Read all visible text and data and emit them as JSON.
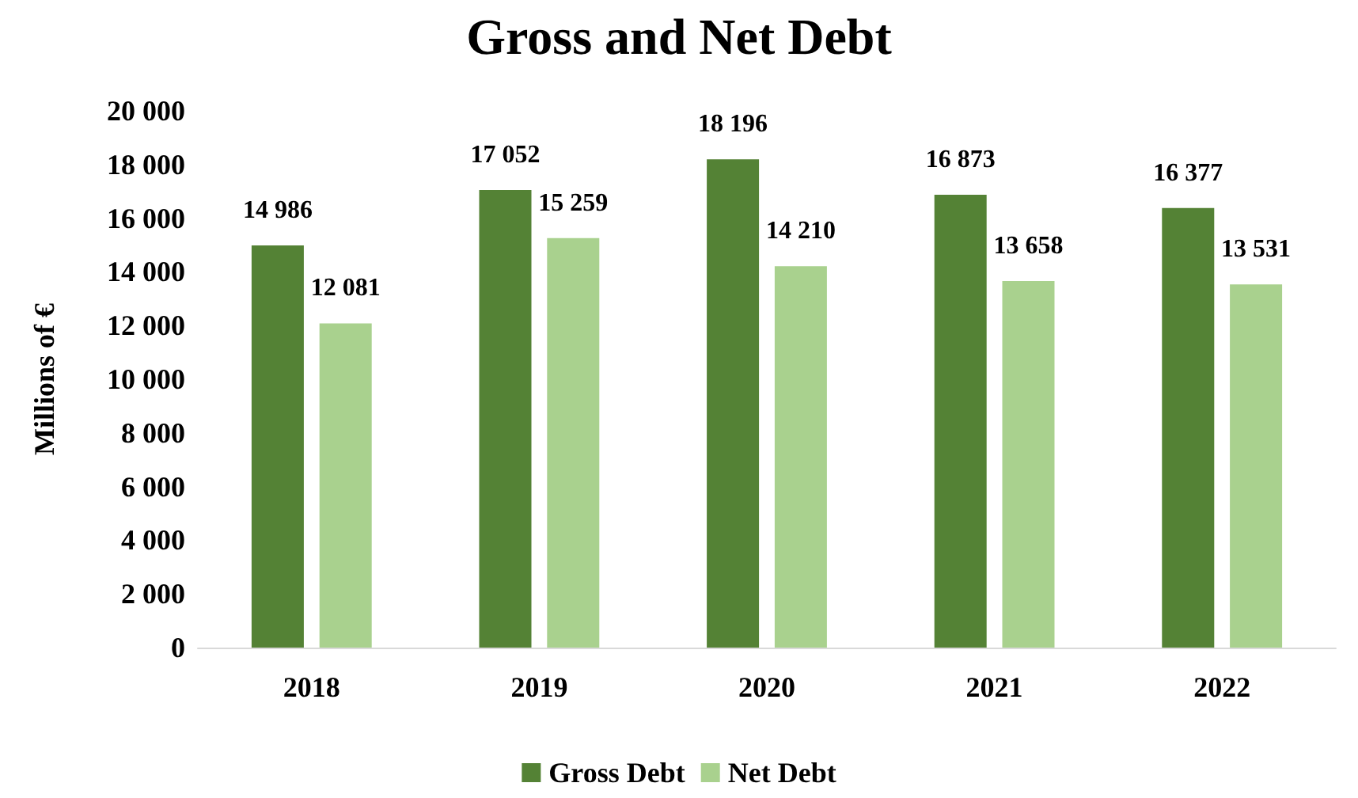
{
  "chart_data": {
    "type": "bar",
    "title": "Gross and Net Debt",
    "ylabel": "Millions of €",
    "categories": [
      "2018",
      "2019",
      "2020",
      "2021",
      "2022"
    ],
    "series": [
      {
        "name": "Gross Debt",
        "color": "#548235",
        "values": [
          14986,
          17052,
          18196,
          16873,
          16377
        ],
        "value_labels": [
          "14 986",
          "17 052",
          "18 196",
          "16 873",
          "16 377"
        ]
      },
      {
        "name": "Net Debt",
        "color": "#a9d18e",
        "values": [
          12081,
          15259,
          14210,
          13658,
          13531
        ],
        "value_labels": [
          "12 081",
          "15 259",
          "14 210",
          "13 658",
          "13 531"
        ]
      }
    ],
    "ylim": [
      0,
      20000
    ],
    "yticks": [
      0,
      {
        "value": 2000,
        "label": "2 000"
      },
      {
        "value": 4000,
        "label": "4 000"
      },
      {
        "value": 6000,
        "label": "6 000"
      },
      {
        "value": 8000,
        "label": "8 000"
      },
      {
        "value": 10000,
        "label": "10 000"
      },
      {
        "value": 12000,
        "label": "12 000"
      },
      {
        "value": 14000,
        "label": "14 000"
      },
      {
        "value": 16000,
        "label": "16 000"
      },
      {
        "value": 18000,
        "label": "18 000"
      },
      {
        "value": 20000,
        "label": "20 000"
      }
    ],
    "grid": false,
    "legend": "bottom"
  }
}
